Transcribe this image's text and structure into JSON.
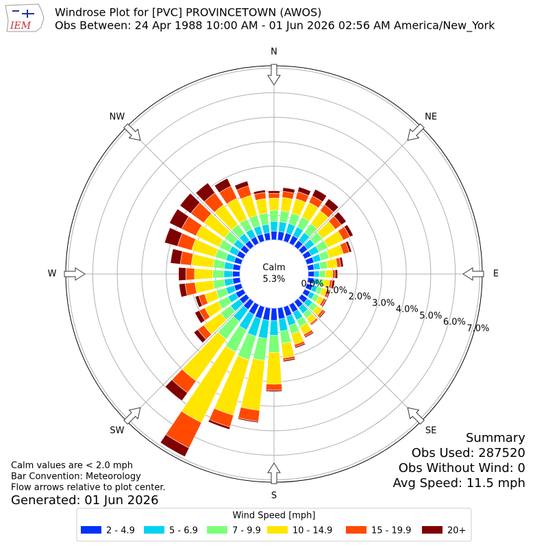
{
  "chart_data": {
    "type": "windrose",
    "title": "Windrose Plot for [PVC] PROVINCETOWN (AWOS)",
    "subtitle": "Obs Between: 24 Apr 1988 10:00 AM - 01 Jun 2026 02:56 AM America/New_York",
    "logo_text": "IEM",
    "compass_labels": [
      "N",
      "NE",
      "E",
      "SE",
      "S",
      "SW",
      "W",
      "NW"
    ],
    "categories": [
      null,
      null,
      null,
      null,
      null,
      null,
      null,
      null,
      null,
      null,
      null,
      null,
      null,
      null,
      null,
      null,
      null,
      null,
      null,
      null,
      null,
      null,
      null,
      null,
      null,
      null,
      null,
      null,
      null,
      null,
      null,
      null,
      null,
      null,
      null,
      null
    ],
    "calm_label": "Calm",
    "calm": {
      "value": 5.3,
      "label": "5.3%"
    },
    "rlim": [
      0,
      7.1
    ],
    "rticks": [
      {
        "value": 0,
        "label": "0.0%"
      },
      {
        "value": 1,
        "label": "1.0%"
      },
      {
        "value": 2,
        "label": "2.0%"
      },
      {
        "value": 3,
        "label": "3.0%"
      },
      {
        "value": 4,
        "label": "4.0%"
      },
      {
        "value": 5,
        "label": "5.0%"
      },
      {
        "value": 6,
        "label": "6.0%"
      },
      {
        "value": 7,
        "label": "7.0%"
      }
    ],
    "grid": true,
    "legend_title": "Wind Speed [mph]",
    "series": [
      {
        "name": "2 - 4.9",
        "color": "#0331fc",
        "values": [
          0.35,
          0.35,
          0.35,
          0.35,
          0.3,
          0.3,
          0.3,
          0.3,
          0.25,
          0.25,
          0.25,
          0.25,
          0.25,
          0.3,
          0.3,
          0.35,
          0.4,
          0.45,
          0.5,
          0.5,
          0.5,
          0.45,
          0.4,
          0.35,
          0.35,
          0.3,
          0.3,
          0.3,
          0.3,
          0.3,
          0.3,
          0.3,
          0.3,
          0.3,
          0.3,
          0.3
        ]
      },
      {
        "name": "5 - 6.9",
        "color": "#00d4ef",
        "values": [
          0.4,
          0.4,
          0.4,
          0.4,
          0.4,
          0.35,
          0.35,
          0.3,
          0.25,
          0.2,
          0.2,
          0.2,
          0.2,
          0.25,
          0.3,
          0.35,
          0.4,
          0.5,
          0.6,
          0.75,
          0.75,
          0.7,
          0.6,
          0.45,
          0.35,
          0.35,
          0.35,
          0.35,
          0.35,
          0.35,
          0.35,
          0.35,
          0.35,
          0.35,
          0.35,
          0.35
        ]
      },
      {
        "name": "7 - 9.9",
        "color": "#7cff79",
        "values": [
          0.45,
          0.45,
          0.45,
          0.45,
          0.45,
          0.4,
          0.4,
          0.35,
          0.3,
          0.25,
          0.2,
          0.2,
          0.2,
          0.25,
          0.25,
          0.3,
          0.35,
          0.5,
          0.7,
          0.9,
          1.0,
          1.0,
          0.9,
          0.5,
          0.45,
          0.4,
          0.45,
          0.45,
          0.45,
          0.45,
          0.45,
          0.45,
          0.45,
          0.45,
          0.45,
          0.45
        ]
      },
      {
        "name": "10 - 14.9",
        "color": "#ffe600",
        "values": [
          0.5,
          0.55,
          0.6,
          0.65,
          0.65,
          0.65,
          0.7,
          0.6,
          0.4,
          0.3,
          0.25,
          0.2,
          0.2,
          0.25,
          0.25,
          0.35,
          0.45,
          0.6,
          1.3,
          2.05,
          2.35,
          3.2,
          2.1,
          0.85,
          0.6,
          0.5,
          0.75,
          0.75,
          0.9,
          1.0,
          1.05,
          1.05,
          1.0,
          0.95,
          0.85,
          0.6
        ]
      },
      {
        "name": "15 - 19.9",
        "color": "#ff4a00",
        "values": [
          0.2,
          0.25,
          0.3,
          0.3,
          0.3,
          0.3,
          0.3,
          0.25,
          0.15,
          0.1,
          0.1,
          0.1,
          0.1,
          0.1,
          0.07,
          0.1,
          0.1,
          0.1,
          0.25,
          0.45,
          0.5,
          1.15,
          0.6,
          0.3,
          0.25,
          0.25,
          0.4,
          0.35,
          0.45,
          0.6,
          0.65,
          0.65,
          0.6,
          0.55,
          0.4,
          0.25
        ]
      },
      {
        "name": "20+",
        "color": "#7f0000",
        "values": [
          0.1,
          0.15,
          0.2,
          0.3,
          0.3,
          0.25,
          0.15,
          0.1,
          0.1,
          0.1,
          0.1,
          0.05,
          0.05,
          0.05,
          0.03,
          0.05,
          0.05,
          0.05,
          0.05,
          0.05,
          0.1,
          0.4,
          0.4,
          0.2,
          0.2,
          0.15,
          0.25,
          0.3,
          0.4,
          0.55,
          0.55,
          0.55,
          0.5,
          0.35,
          0.2,
          0.1
        ]
      }
    ],
    "summary": [
      "Summary",
      "Obs Used: 287520",
      "Obs Without Wind: 0",
      "Avg Speed: 11.5 mph"
    ],
    "notes": [
      "Calm values are < 2.0 mph",
      "Bar Convention: Meteorology",
      "Flow arrows relative to plot center."
    ],
    "generated": "Generated: 01 Jun 2026"
  }
}
